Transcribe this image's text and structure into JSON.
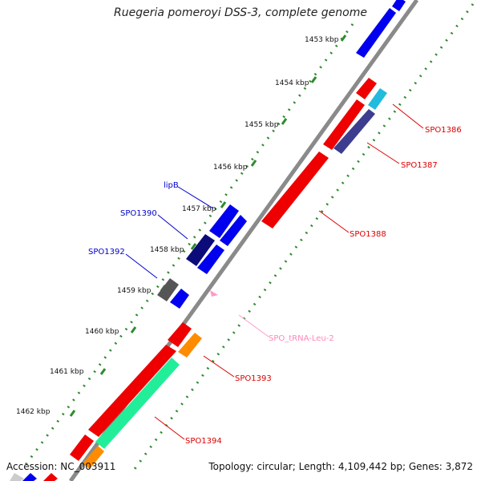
{
  "title": "Ruegeria pomeroyi DSS-3, complete genome",
  "footer": {
    "accession": "Accession: NC_003911",
    "summary": "Topology: circular; Length: 4,109,442 bp; Genes: 3,872"
  },
  "ticks": [
    "1453 kbp",
    "1454 kbp",
    "1455 kbp",
    "1456 kbp",
    "1457 kbp",
    "1458 kbp",
    "1459 kbp",
    "1460 kbp",
    "1461 kbp",
    "1462 kbp"
  ],
  "labels": {
    "spo1386": "SPO1386",
    "spo1387": "SPO1387",
    "spo1388": "SPO1388",
    "lipb": "lipB",
    "spo1390": "SPO1390",
    "spo1392": "SPO1392",
    "trna": "SPO_tRNA-Leu-2",
    "spo1393": "SPO1393",
    "spo1394": "SPO1394"
  },
  "colors": {
    "backbone": "#7a7a7a",
    "dots": "#2e8b2e",
    "forward_gene": "#0000ee",
    "reverse_gene": "#ee0000",
    "dark_blue_gene": "#0b0b7a",
    "gray_gene": "#555555",
    "purple_gene": "#3d3d8f",
    "cyan_gene": "#22bbdd",
    "orange_gene": "#ff8c00",
    "green_gene": "#22ee99",
    "trna": "#ff99cc",
    "forward_label": "#0000cc",
    "reverse_label": "#dd0000",
    "trna_label": "#ff88bb"
  }
}
